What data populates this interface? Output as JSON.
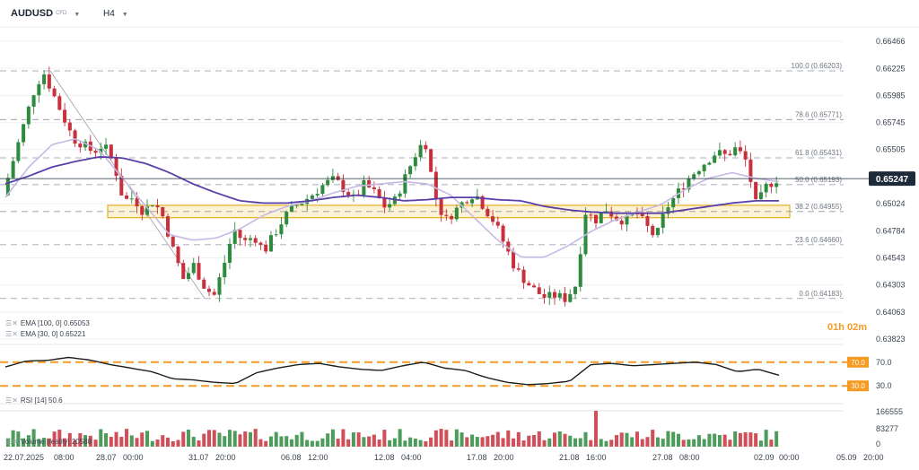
{
  "header": {
    "symbol": "AUDUSD",
    "instrument_type": "CFD",
    "timeframe": "H4"
  },
  "indicators": {
    "ema100": {
      "label": "EMA",
      "params": "[100, 0]",
      "value": "0.65053",
      "color": "#5b3fa8"
    },
    "ema30": {
      "label": "EMA",
      "params": "[30, 0]",
      "value": "0.65221",
      "color": "#c6b9e4"
    },
    "rsi": {
      "label": "RSI",
      "params": "[14]",
      "value": "50.6"
    },
    "volume": {
      "label": "Volume",
      "params": "[reality]",
      "value": "20588"
    }
  },
  "countdown": "01h 02m",
  "current_price": "0.65247",
  "colors": {
    "up": "#2e8b3e",
    "down": "#c8303c",
    "fib": "#8f96a0",
    "zone_fill": "#fbe7b0",
    "zone_border": "#e7b11d",
    "rsi_band": "#f59a23",
    "rsi_line": "#1e1e1e",
    "price_tag": "#1e2a3a"
  },
  "chart_data": {
    "type": "candlestick",
    "price_axis": {
      "min": 0.63823,
      "max": 0.66466,
      "ticks": [
        "0.66466",
        "0.66225",
        "0.65985",
        "0.65745",
        "0.65505",
        "0.65024",
        "0.64784",
        "0.64543",
        "0.64303",
        "0.64063",
        "0.63823"
      ]
    },
    "x_ticks": [
      "22.07.2025",
      "08:00",
      "28.07",
      "00:00",
      "31.07",
      "20:00",
      "06.08",
      "12:00",
      "12.08",
      "04:00",
      "17.08",
      "20:00",
      "21.08",
      "16:00",
      "27.08",
      "08:00",
      "02.09",
      "00:00",
      "05.09",
      "20:00"
    ],
    "fibonacci": [
      {
        "label": "100.0 (0.66203)",
        "value": 0.66203
      },
      {
        "label": "78.6 (0.65771)",
        "value": 0.65771
      },
      {
        "label": "61.8 (0.65431)",
        "value": 0.65431
      },
      {
        "label": "50.0 (0.65193)",
        "value": 0.65193
      },
      {
        "label": "38.2 (0.64955)",
        "value": 0.64955
      },
      {
        "label": "23.6 (0.64660)",
        "value": 0.6466
      },
      {
        "label": "0.0 (0.64183)",
        "value": 0.64183
      }
    ],
    "zone": {
      "low": 0.649,
      "high": 0.6501
    },
    "close_path": [
      0.651,
      0.654,
      0.657,
      0.66,
      0.662,
      0.66,
      0.658,
      0.656,
      0.6555,
      0.6548,
      0.6555,
      0.654,
      0.6505,
      0.6508,
      0.6495,
      0.6505,
      0.649,
      0.646,
      0.6435,
      0.6448,
      0.643,
      0.642,
      0.6448,
      0.648,
      0.6468,
      0.6474,
      0.646,
      0.6475,
      0.649,
      0.65,
      0.6505,
      0.6512,
      0.652,
      0.6524,
      0.6515,
      0.6506,
      0.652,
      0.6512,
      0.65,
      0.6505,
      0.6525,
      0.6545,
      0.656,
      0.651,
      0.6487,
      0.6496,
      0.6506,
      0.6512,
      0.6498,
      0.6485,
      0.6465,
      0.6445,
      0.6434,
      0.6425,
      0.6419,
      0.6421,
      0.6418,
      0.643,
      0.6495,
      0.6488,
      0.6498,
      0.649,
      0.6487,
      0.6495,
      0.6483,
      0.6472,
      0.6498,
      0.651,
      0.6522,
      0.6532,
      0.654,
      0.6548,
      0.6545,
      0.6552,
      0.654,
      0.65,
      0.6518,
      0.6524
    ],
    "ema100_path": [
      0.652,
      0.6527,
      0.6535,
      0.654,
      0.6544,
      0.6543,
      0.6538,
      0.653,
      0.652,
      0.6512,
      0.6505,
      0.6503,
      0.6503,
      0.6505,
      0.6508,
      0.651,
      0.6508,
      0.6505,
      0.6506,
      0.6508,
      0.6508,
      0.6506,
      0.6505,
      0.65,
      0.6497,
      0.6495,
      0.6494,
      0.6494,
      0.6494,
      0.6497,
      0.65,
      0.6503,
      0.6505,
      0.6505
    ],
    "ema30_path": [
      0.6508,
      0.6535,
      0.6555,
      0.656,
      0.655,
      0.6525,
      0.65,
      0.6475,
      0.647,
      0.6472,
      0.648,
      0.6492,
      0.65,
      0.6505,
      0.6512,
      0.6518,
      0.652,
      0.6522,
      0.652,
      0.651,
      0.649,
      0.647,
      0.6455,
      0.6455,
      0.6465,
      0.6478,
      0.6488,
      0.6495,
      0.6502,
      0.6515,
      0.6525,
      0.653,
      0.6525,
      0.6522
    ],
    "rsi_ticks": [
      "70.0",
      "30.0"
    ],
    "rsi_path": [
      62,
      72,
      73,
      78,
      74,
      66,
      60,
      54,
      42,
      40,
      36,
      34,
      52,
      60,
      66,
      68,
      62,
      58,
      56,
      64,
      70,
      60,
      56,
      44,
      36,
      32,
      34,
      38,
      66,
      68,
      64,
      66,
      68,
      70,
      66,
      54,
      58,
      48
    ],
    "volume_ticks": [
      "166555",
      "83277",
      "0"
    ]
  }
}
